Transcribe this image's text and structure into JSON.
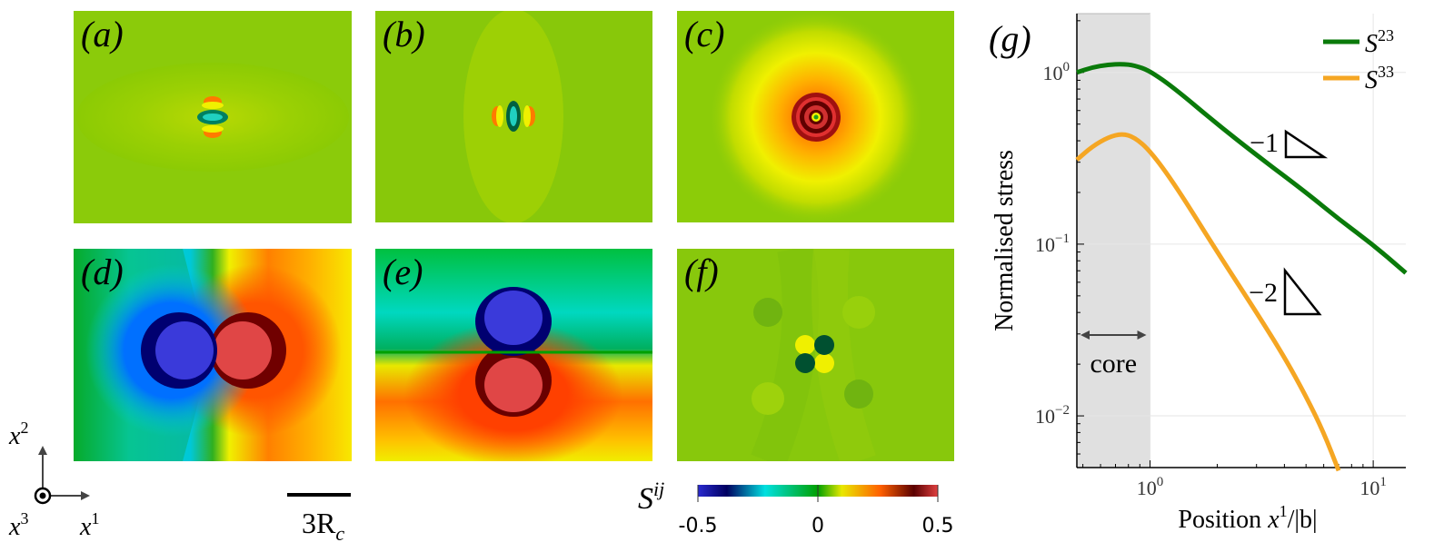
{
  "panels": {
    "a": {
      "label": "(a)"
    },
    "b": {
      "label": "(b)"
    },
    "c": {
      "label": "(c)"
    },
    "d": {
      "label": "(d)"
    },
    "e": {
      "label": "(e)"
    },
    "f": {
      "label": "(f)"
    }
  },
  "axes_indicator": {
    "x1": "x",
    "x1_sup": "1",
    "x2": "x",
    "x2_sup": "2",
    "x3": "x",
    "x3_sup": "3"
  },
  "scale_bar": {
    "label": "3R",
    "label_sub": "c"
  },
  "colorbar": {
    "symbol": "S",
    "symbol_sup": "ij",
    "ticks": [
      "-0.5",
      "0",
      "0.5"
    ],
    "stops": [
      "#2a2ad0",
      "#000060",
      "#00e0e0",
      "#00a000",
      "#e8e800",
      "#ff6000",
      "#5a0000",
      "#e04040"
    ]
  },
  "chart_data": {
    "type": "line",
    "panel_label": "(g)",
    "xlabel": "Position x¹/|b|",
    "xlabel_parts": {
      "text": "Position ",
      "var": "x",
      "sup": "1",
      "tail": "/|b|"
    },
    "ylabel": "Normalised stress",
    "x_scale": "log",
    "y_scale": "log",
    "xlim": [
      0.47,
      14
    ],
    "ylim": [
      0.005,
      2.2
    ],
    "x_ticks": [
      {
        "base": "10",
        "exp": "0",
        "value": 1
      },
      {
        "base": "10",
        "exp": "1",
        "value": 10
      }
    ],
    "y_ticks": [
      {
        "base": "10",
        "exp": "0",
        "value": 1
      },
      {
        "base": "10",
        "exp": "−1",
        "value": 0.1
      },
      {
        "base": "10",
        "exp": "−2",
        "value": 0.01
      }
    ],
    "grid": true,
    "legend_position": "top-right",
    "core_region": {
      "x": [
        0.47,
        1.0
      ],
      "label": "core"
    },
    "slope_annotations": [
      {
        "label": "−1"
      },
      {
        "label": "−2"
      }
    ],
    "series": [
      {
        "name": "S²³",
        "name_base": "S",
        "name_sup": "23",
        "color": "#0a7a0a",
        "x": [
          0.47,
          0.55,
          0.65,
          0.75,
          0.85,
          1.0,
          1.3,
          2,
          3,
          5,
          7,
          10,
          14
        ],
        "y": [
          1.0,
          1.07,
          1.11,
          1.12,
          1.1,
          1.02,
          0.8,
          0.5,
          0.33,
          0.2,
          0.14,
          0.099,
          0.068
        ]
      },
      {
        "name": "S³³",
        "name_base": "S",
        "name_sup": "33",
        "color": "#f5a623",
        "x": [
          0.47,
          0.55,
          0.65,
          0.75,
          0.85,
          1.0,
          1.3,
          2,
          3,
          4,
          5,
          6,
          7
        ],
        "y": [
          0.31,
          0.37,
          0.42,
          0.44,
          0.42,
          0.35,
          0.22,
          0.09,
          0.04,
          0.022,
          0.013,
          0.008,
          0.0048
        ]
      }
    ]
  }
}
